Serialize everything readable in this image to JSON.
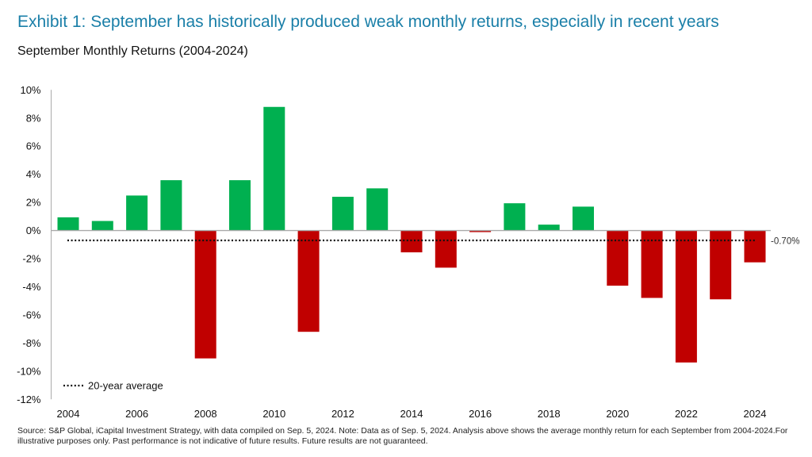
{
  "title": "Exhibit 1: September has historically produced weak monthly returns, especially in recent years",
  "subtitle": "September Monthly Returns (2004-2024)",
  "source": "Source: S&P Global, iCapital Investment Strategy, with data compiled on Sep. 5, 2024. Note: Data as of Sep. 5, 2024. Analysis above shows the average monthly return for each September from 2004-2024.For illustrative purposes only. Past performance is not indicative of future results. Future results are not guaranteed.",
  "chart_data": {
    "type": "bar",
    "categories": [
      "2004",
      "2005",
      "2006",
      "2007",
      "2008",
      "2009",
      "2010",
      "2011",
      "2012",
      "2013",
      "2014",
      "2015",
      "2016",
      "2017",
      "2018",
      "2019",
      "2020",
      "2021",
      "2022",
      "2023",
      "2024"
    ],
    "values": [
      0.94,
      0.68,
      2.49,
      3.58,
      -9.09,
      3.58,
      8.79,
      -7.2,
      2.4,
      3.0,
      -1.55,
      -2.64,
      -0.11,
      1.94,
      0.42,
      1.7,
      -3.92,
      -4.79,
      -9.38,
      -4.89,
      -2.26
    ],
    "x_tick_labels": [
      "2004",
      "2006",
      "2008",
      "2010",
      "2012",
      "2014",
      "2016",
      "2018",
      "2020",
      "2022",
      "2024"
    ],
    "y_ticks": [
      10,
      8,
      6,
      4,
      2,
      0,
      -2,
      -4,
      -6,
      -8,
      -10,
      -12
    ],
    "y_tick_labels": [
      "10%",
      "8%",
      "6%",
      "4%",
      "2%",
      "0%",
      "-2%",
      "-4%",
      "-6%",
      "-8%",
      "-10%",
      "-12%"
    ],
    "ylim": [
      -12,
      10
    ],
    "average": {
      "value": -0.7,
      "label": "-0.70%",
      "legend": "20-year average"
    },
    "colors": {
      "positive": "#00b050",
      "negative": "#c00000",
      "title": "#1a7fa8"
    },
    "legend_position": "bottom-left",
    "grid": false
  }
}
